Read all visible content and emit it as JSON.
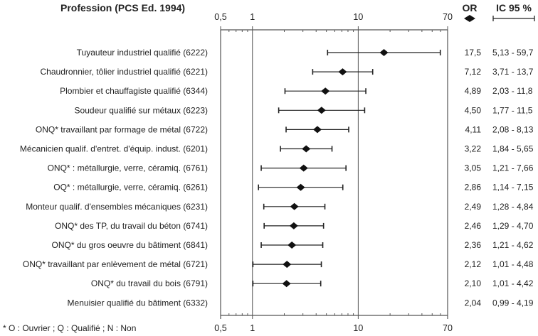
{
  "chart_data": {
    "type": "forest",
    "title": "Profession (PCS Ed. 1994)",
    "col_or_header": "OR",
    "col_ci_header": "IC 95 %",
    "footnote": "* O : Ouvrier ; Q : Qualifié ; N : Non",
    "x_scale": "log",
    "xlim": [
      0.5,
      70
    ],
    "x_ticks": [
      {
        "value": 0.5,
        "label": "0,5"
      },
      {
        "value": 1,
        "label": "1"
      },
      {
        "value": 10,
        "label": "10"
      },
      {
        "value": 70,
        "label": "70"
      }
    ],
    "reference_lines": [
      1,
      10
    ],
    "rows": [
      {
        "label": "Tuyauteur industriel qualifié (6222)",
        "or": 17.5,
        "lo": 5.13,
        "hi": 59.7,
        "or_text": "17,5",
        "ci_text": "5,13 - 59,7",
        "plotted": true
      },
      {
        "label": "Chaudronnier, tôlier industriel qualifié (6221)",
        "or": 7.12,
        "lo": 3.71,
        "hi": 13.7,
        "or_text": "7,12",
        "ci_text": "3,71 - 13,7",
        "plotted": true
      },
      {
        "label": "Plombier et chauffagiste qualifié (6344)",
        "or": 4.89,
        "lo": 2.03,
        "hi": 11.8,
        "or_text": "4,89",
        "ci_text": "2,03 - 11,8",
        "plotted": true
      },
      {
        "label": "Soudeur qualifié sur métaux (6223)",
        "or": 4.5,
        "lo": 1.77,
        "hi": 11.5,
        "or_text": "4,50",
        "ci_text": "1,77 - 11,5",
        "plotted": true
      },
      {
        "label": "ONQ* travaillant par formage de métal (6722)",
        "or": 4.11,
        "lo": 2.08,
        "hi": 8.13,
        "or_text": "4,11",
        "ci_text": "2,08 - 8,13",
        "plotted": true
      },
      {
        "label": "Mécanicien qualif. d'entret. d'équip. indust. (6201)",
        "or": 3.22,
        "lo": 1.84,
        "hi": 5.65,
        "or_text": "3,22",
        "ci_text": "1,84 - 5,65",
        "plotted": true
      },
      {
        "label": "ONQ* : métallurgie, verre, céramiq. (6761)",
        "or": 3.05,
        "lo": 1.21,
        "hi": 7.66,
        "or_text": "3,05",
        "ci_text": "1,21 - 7,66",
        "plotted": true
      },
      {
        "label": "OQ* : métallurgie, verre, céramiq. (6261)",
        "or": 2.86,
        "lo": 1.14,
        "hi": 7.15,
        "or_text": "2,86",
        "ci_text": "1,14 - 7,15",
        "plotted": true
      },
      {
        "label": "Monteur qualif. d'ensembles mécaniques (6231)",
        "or": 2.49,
        "lo": 1.28,
        "hi": 4.84,
        "or_text": "2,49",
        "ci_text": "1,28 - 4,84",
        "plotted": true
      },
      {
        "label": "ONQ* des TP, du travail du béton (6741)",
        "or": 2.46,
        "lo": 1.29,
        "hi": 4.7,
        "or_text": "2,46",
        "ci_text": "1,29 - 4,70",
        "plotted": true
      },
      {
        "label": "ONQ* du gros oeuvre du bâtiment (6841)",
        "or": 2.36,
        "lo": 1.21,
        "hi": 4.62,
        "or_text": "2,36",
        "ci_text": "1,21 - 4,62",
        "plotted": true
      },
      {
        "label": "ONQ* travaillant par enlèvement de métal (6721)",
        "or": 2.12,
        "lo": 1.01,
        "hi": 4.48,
        "or_text": "2,12",
        "ci_text": "1,01 - 4,48",
        "plotted": true
      },
      {
        "label": "ONQ* du travail du bois (6791)",
        "or": 2.1,
        "lo": 1.01,
        "hi": 4.42,
        "or_text": "2,10",
        "ci_text": "1,01 - 4,42",
        "plotted": true
      },
      {
        "label": "Menuisier qualifié du bâtiment (6332)",
        "or": 2.04,
        "lo": 0.99,
        "hi": 4.19,
        "or_text": "2,04",
        "ci_text": "0,99 - 4,19",
        "plotted": false
      }
    ],
    "colors": {
      "line": "#222222",
      "frame": "#555555"
    }
  }
}
